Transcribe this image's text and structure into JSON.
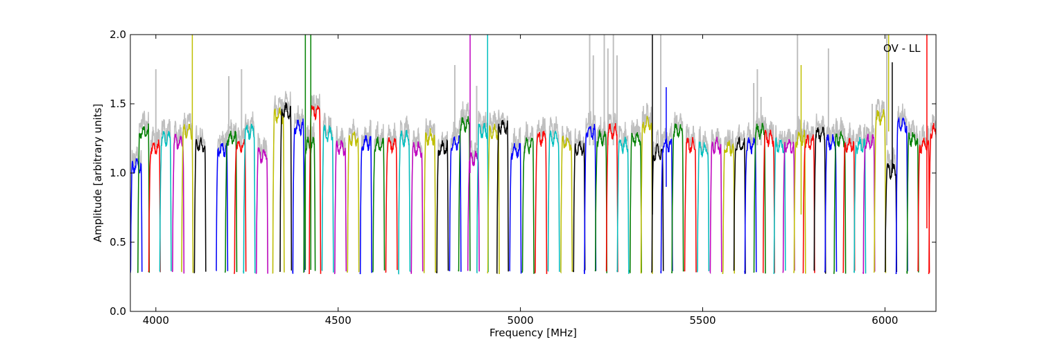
{
  "chart_data": {
    "type": "line",
    "title": "",
    "xlabel": "Frequency [MHz]",
    "ylabel": "Amplitude [arbitrary units]",
    "xlim": [
      3930,
      6140
    ],
    "ylim": [
      0.0,
      2.0
    ],
    "xticks": [
      4000,
      4500,
      5000,
      5500,
      6000
    ],
    "yticks": [
      0.0,
      0.5,
      1.0,
      1.5,
      2.0
    ],
    "ytick_labels": [
      "0.0",
      "0.5",
      "1.0",
      "1.5",
      "2.0"
    ],
    "grid": false,
    "annotation": "OV - LL",
    "band_width_mhz": 32,
    "raw_color": "#bfbfbf",
    "series_colors": [
      "#0000ff",
      "#008000",
      "#ff0000",
      "#00bfbf",
      "#bf00bf",
      "#bfbf00",
      "#000000"
    ],
    "bands": [
      {
        "start": 3930,
        "level": 1.05,
        "color": "#0000ff"
      },
      {
        "start": 3950,
        "level": 1.3,
        "color": "#008000"
      },
      {
        "start": 3980,
        "level": 1.18,
        "color": "#ff0000"
      },
      {
        "start": 4010,
        "level": 1.25,
        "color": "#00bfbf"
      },
      {
        "start": 4045,
        "level": 1.22,
        "color": "#bf00bf"
      },
      {
        "start": 4070,
        "level": 1.3,
        "color": "#bfbf00"
      },
      {
        "start": 4105,
        "level": 1.2,
        "color": "#000000"
      },
      {
        "start": 4165,
        "level": 1.17,
        "color": "#0000ff"
      },
      {
        "start": 4190,
        "level": 1.25,
        "color": "#008000"
      },
      {
        "start": 4215,
        "level": 1.2,
        "color": "#ff0000"
      },
      {
        "start": 4240,
        "level": 1.3,
        "color": "#00bfbf"
      },
      {
        "start": 4275,
        "level": 1.13,
        "color": "#bf00bf"
      },
      {
        "start": 4320,
        "level": 1.42,
        "color": "#bfbf00"
      },
      {
        "start": 4340,
        "level": 1.45,
        "color": "#000000"
      },
      {
        "start": 4375,
        "level": 1.33,
        "color": "#0000ff"
      },
      {
        "start": 4405,
        "level": 1.2,
        "color": "#008000"
      },
      {
        "start": 4420,
        "level": 1.45,
        "color": "#ff0000"
      },
      {
        "start": 4455,
        "level": 1.28,
        "color": "#00bfbf"
      },
      {
        "start": 4490,
        "level": 1.18,
        "color": "#bf00bf"
      },
      {
        "start": 4525,
        "level": 1.25,
        "color": "#bfbf00"
      },
      {
        "start": 4560,
        "level": 1.22,
        "color": "#0000ff"
      },
      {
        "start": 4595,
        "level": 1.2,
        "color": "#008000"
      },
      {
        "start": 4630,
        "level": 1.2,
        "color": "#ff0000"
      },
      {
        "start": 4665,
        "level": 1.25,
        "color": "#00bfbf"
      },
      {
        "start": 4700,
        "level": 1.17,
        "color": "#bf00bf"
      },
      {
        "start": 4735,
        "level": 1.26,
        "color": "#bfbf00"
      },
      {
        "start": 4770,
        "level": 1.18,
        "color": "#000000"
      },
      {
        "start": 4805,
        "level": 1.22,
        "color": "#0000ff"
      },
      {
        "start": 4830,
        "level": 1.35,
        "color": "#008000"
      },
      {
        "start": 4855,
        "level": 1.1,
        "color": "#bf00bf"
      },
      {
        "start": 4880,
        "level": 1.3,
        "color": "#00bfbf"
      },
      {
        "start": 4910,
        "level": 1.3,
        "color": "#bfbf00"
      },
      {
        "start": 4935,
        "level": 1.33,
        "color": "#000000"
      },
      {
        "start": 4970,
        "level": 1.16,
        "color": "#0000ff"
      },
      {
        "start": 5005,
        "level": 1.2,
        "color": "#008000"
      },
      {
        "start": 5040,
        "level": 1.25,
        "color": "#ff0000"
      },
      {
        "start": 5075,
        "level": 1.25,
        "color": "#00bfbf"
      },
      {
        "start": 5110,
        "level": 1.22,
        "color": "#bfbf00"
      },
      {
        "start": 5145,
        "level": 1.18,
        "color": "#000000"
      },
      {
        "start": 5175,
        "level": 1.3,
        "color": "#0000ff"
      },
      {
        "start": 5205,
        "level": 1.25,
        "color": "#008000"
      },
      {
        "start": 5235,
        "level": 1.3,
        "color": "#ff0000"
      },
      {
        "start": 5265,
        "level": 1.2,
        "color": "#00bfbf"
      },
      {
        "start": 5300,
        "level": 1.25,
        "color": "#008000"
      },
      {
        "start": 5330,
        "level": 1.35,
        "color": "#bfbf00"
      },
      {
        "start": 5360,
        "level": 1.15,
        "color": "#000000"
      },
      {
        "start": 5385,
        "level": 1.2,
        "color": "#0000ff"
      },
      {
        "start": 5415,
        "level": 1.3,
        "color": "#008000"
      },
      {
        "start": 5450,
        "level": 1.2,
        "color": "#ff0000"
      },
      {
        "start": 5485,
        "level": 1.17,
        "color": "#00bfbf"
      },
      {
        "start": 5520,
        "level": 1.2,
        "color": "#bf00bf"
      },
      {
        "start": 5555,
        "level": 1.18,
        "color": "#bfbf00"
      },
      {
        "start": 5585,
        "level": 1.2,
        "color": "#000000"
      },
      {
        "start": 5615,
        "level": 1.2,
        "color": "#0000ff"
      },
      {
        "start": 5640,
        "level": 1.3,
        "color": "#008000"
      },
      {
        "start": 5665,
        "level": 1.25,
        "color": "#ff0000"
      },
      {
        "start": 5695,
        "level": 1.2,
        "color": "#00bfbf"
      },
      {
        "start": 5720,
        "level": 1.2,
        "color": "#bf00bf"
      },
      {
        "start": 5750,
        "level": 1.25,
        "color": "#bfbf00"
      },
      {
        "start": 5775,
        "level": 1.22,
        "color": "#ff0000"
      },
      {
        "start": 5805,
        "level": 1.28,
        "color": "#000000"
      },
      {
        "start": 5835,
        "level": 1.22,
        "color": "#0000ff"
      },
      {
        "start": 5860,
        "level": 1.25,
        "color": "#008000"
      },
      {
        "start": 5885,
        "level": 1.2,
        "color": "#ff0000"
      },
      {
        "start": 5915,
        "level": 1.2,
        "color": "#00bfbf"
      },
      {
        "start": 5940,
        "level": 1.22,
        "color": "#bf00bf"
      },
      {
        "start": 5970,
        "level": 1.4,
        "color": "#bfbf00"
      },
      {
        "start": 6000,
        "level": 1.02,
        "color": "#000000"
      },
      {
        "start": 6030,
        "level": 1.35,
        "color": "#0000ff"
      },
      {
        "start": 6060,
        "level": 1.25,
        "color": "#008000"
      },
      {
        "start": 6090,
        "level": 1.2,
        "color": "#ff0000"
      },
      {
        "start": 6120,
        "level": 1.3,
        "color": "#ff0000"
      }
    ],
    "spikes": [
      {
        "x": 4100,
        "from": 1.2,
        "to": 2.0,
        "color": "#bfbf00"
      },
      {
        "x": 4410,
        "from": 0.3,
        "to": 2.0,
        "color": "#008000"
      },
      {
        "x": 4425,
        "from": 0.3,
        "to": 2.0,
        "color": "#008000"
      },
      {
        "x": 4862,
        "from": 1.0,
        "to": 2.0,
        "color": "#bf00bf"
      },
      {
        "x": 4910,
        "from": 1.2,
        "to": 2.0,
        "color": "#00bfbf"
      },
      {
        "x": 5362,
        "from": 0.7,
        "to": 2.0,
        "color": "#000000"
      },
      {
        "x": 6010,
        "from": 1.3,
        "to": 2.0,
        "color": "#bfbf00"
      },
      {
        "x": 6020,
        "from": 1.0,
        "to": 1.8,
        "color": "#000000"
      },
      {
        "x": 6115,
        "from": 0.6,
        "to": 2.0,
        "color": "#ff0000"
      },
      {
        "x": 5400,
        "from": 0.9,
        "to": 1.62,
        "color": "#0000ff"
      },
      {
        "x": 5770,
        "from": 0.7,
        "to": 1.78,
        "color": "#bfbf00"
      }
    ],
    "raw_spikes": [
      {
        "x": 4000,
        "to": 1.75
      },
      {
        "x": 4200,
        "to": 1.7
      },
      {
        "x": 4235,
        "to": 1.75
      },
      {
        "x": 4820,
        "to": 1.78
      },
      {
        "x": 4880,
        "to": 1.63
      },
      {
        "x": 5190,
        "to": 2.0
      },
      {
        "x": 5200,
        "to": 1.85
      },
      {
        "x": 5230,
        "to": 2.0
      },
      {
        "x": 5240,
        "to": 1.9
      },
      {
        "x": 5255,
        "to": 2.0
      },
      {
        "x": 5265,
        "to": 1.85
      },
      {
        "x": 5385,
        "to": 2.0
      },
      {
        "x": 5640,
        "to": 1.65
      },
      {
        "x": 5650,
        "to": 1.75
      },
      {
        "x": 5660,
        "to": 1.55
      },
      {
        "x": 5760,
        "to": 2.0
      },
      {
        "x": 5845,
        "to": 1.9
      },
      {
        "x": 5965,
        "to": 1.5
      },
      {
        "x": 6005,
        "to": 2.0
      }
    ]
  }
}
